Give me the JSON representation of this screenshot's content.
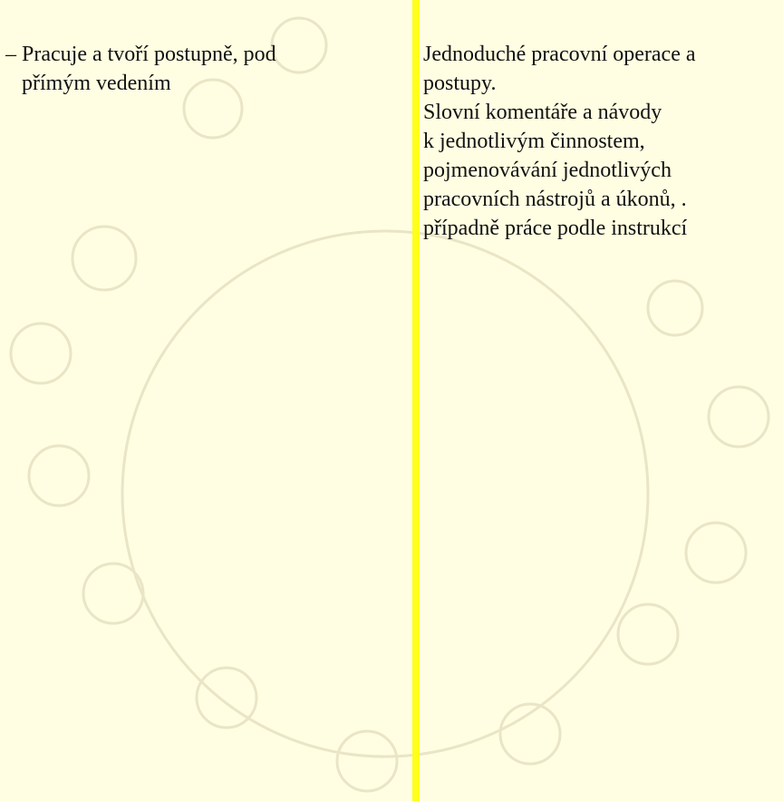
{
  "left_column": {
    "lines": [
      "– Pracuje a tvoří postupně, pod",
      "přímým vedením"
    ]
  },
  "right_column": {
    "lines": [
      "Jednoduché pracovní operace a",
      "postupy.",
      "Slovní komentáře a návody",
      "k jednotlivým činnostem,",
      "pojmenovávání jednotlivých",
      "pracovních nástrojů a úkonů, .",
      "případně práce podle instrukcí"
    ]
  }
}
